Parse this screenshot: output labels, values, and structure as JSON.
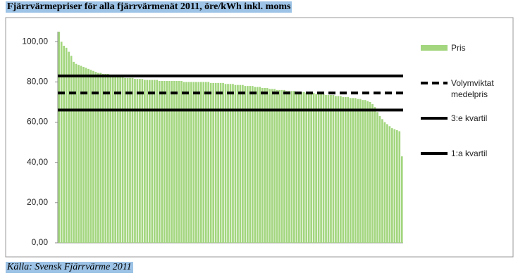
{
  "chart_data": {
    "type": "bar",
    "title": "Fjärrvärmepriser för alla fjärrvärmenät 2011, öre/kWh inkl. moms",
    "source": "Källa: Svensk Fjärrvärme 2011",
    "series": [
      {
        "name": "Pris",
        "color": "#a3d67f",
        "values": [
          105,
          100,
          98,
          97,
          95,
          93,
          90,
          89,
          88.5,
          88,
          87.5,
          87,
          86.5,
          86,
          85.5,
          85,
          84.5,
          84.5,
          84,
          84,
          84,
          83.5,
          83.5,
          83,
          83,
          82.5,
          82.5,
          82,
          82,
          82,
          82,
          81.5,
          81.5,
          81.5,
          81.5,
          81,
          81,
          81,
          81,
          81,
          81,
          80.5,
          80.5,
          80.5,
          80.5,
          80.5,
          80.5,
          80.5,
          80.5,
          80.5,
          80.5,
          80,
          80,
          80,
          80,
          80,
          80,
          80,
          80,
          80,
          80,
          80,
          79.5,
          79.5,
          79.5,
          79.5,
          79.5,
          79.5,
          79,
          79,
          79,
          79,
          78.5,
          78.5,
          78.5,
          78.5,
          78,
          78,
          78,
          78,
          77.5,
          77.5,
          77.5,
          77,
          77,
          77,
          76.5,
          76.5,
          76.5,
          76,
          76,
          76,
          76,
          75.5,
          75.5,
          75.5,
          75.5,
          75,
          75,
          75,
          75,
          74.5,
          74.5,
          74.5,
          74.5,
          74,
          74,
          74,
          74,
          73.5,
          73.5,
          73.5,
          73.5,
          73,
          73,
          73,
          72.5,
          72.5,
          72.5,
          72,
          72,
          72,
          71.5,
          71.5,
          71,
          71,
          70.5,
          70,
          69,
          67.5,
          65,
          63,
          61.5,
          60,
          59,
          58,
          57,
          56.5,
          56,
          55.5,
          43
        ]
      }
    ],
    "reference_lines": [
      {
        "name": "Volymviktat medelpris",
        "value": 74.5,
        "color": "#000000",
        "dashed": true
      },
      {
        "name": "3:e kvartil",
        "value": 83,
        "color": "#000000",
        "dashed": false
      },
      {
        "name": "1:a kvartil",
        "value": 66,
        "color": "#000000",
        "dashed": false
      }
    ],
    "ylim": [
      0,
      105
    ],
    "yticks": [
      {
        "value": 0,
        "label": "0,00"
      },
      {
        "value": 20,
        "label": "20,00"
      },
      {
        "value": 40,
        "label": "40,00"
      },
      {
        "value": 60,
        "label": "60,00"
      },
      {
        "value": 80,
        "label": "80,00"
      },
      {
        "value": 100,
        "label": "100,00"
      }
    ]
  }
}
